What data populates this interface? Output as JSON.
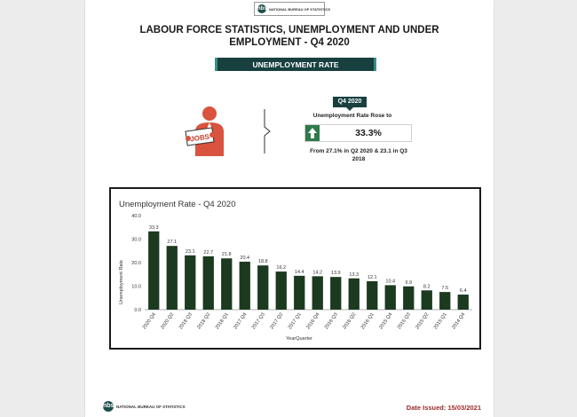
{
  "header": {
    "logo_text": "NATIONAL BUREAU OF STATISTICS",
    "logo_mark": "nbs",
    "title": "LABOUR FORCE STATISTICS, UNEMPLOYMENT AND UNDER EMPLOYMENT - Q4 2020",
    "banner": "UNEMPLOYMENT RATE"
  },
  "highlight": {
    "quarter": "Q4 2020",
    "heading": "Unemployment Rate Rose to",
    "value": "33.3%",
    "note": "From 27.1% in Q2 2020 & 23.1 in Q3 2018",
    "icon": "jobs-sign-person-icon",
    "arrow_icon": "up-arrow-icon",
    "colors": {
      "dark_teal": "#17403f",
      "up_green": "#2d7a4a",
      "person_red": "#d9533e"
    }
  },
  "chart_data": {
    "type": "bar",
    "title": "Unemployment Rate - Q4 2020",
    "xlabel": "YearQuarter",
    "ylabel": "Unemployment Rate",
    "ylim": [
      0,
      40
    ],
    "yticks": [
      "0.0",
      "10.0",
      "20.0",
      "30.0",
      "40.0"
    ],
    "grid": false,
    "bar_color": "#1b3a1f",
    "categories": [
      "2020 Q4",
      "2020 Q2",
      "2018 Q3",
      "2018 Q2",
      "2018 Q1",
      "2017 Q4",
      "2017 Q3",
      "2017 Q2",
      "2017 Q1",
      "2016 Q4",
      "2016 Q3",
      "2016 Q2",
      "2016 Q1",
      "2015 Q4",
      "2015 Q3",
      "2015 Q2",
      "2015 Q1",
      "2014 Q4"
    ],
    "values": [
      33.3,
      27.1,
      23.1,
      22.7,
      21.8,
      20.4,
      18.8,
      16.2,
      14.4,
      14.2,
      13.9,
      13.3,
      12.1,
      10.4,
      9.9,
      8.2,
      7.5,
      6.4
    ],
    "labels": [
      "33.3",
      "27.1",
      "23.1",
      "22.7",
      "21.8",
      "20.4",
      "18.8",
      "16.2",
      "14.4",
      "14.2",
      "13.9",
      "13.3",
      "12.1",
      "10.4",
      "9.9",
      "8.2",
      "7.5",
      "6.4"
    ]
  },
  "footer": {
    "logo_text": "NATIONAL BUREAU OF STATISTICS",
    "logo_mark": "nbs",
    "date_issued": "Date Issued: 15/03/2021"
  }
}
